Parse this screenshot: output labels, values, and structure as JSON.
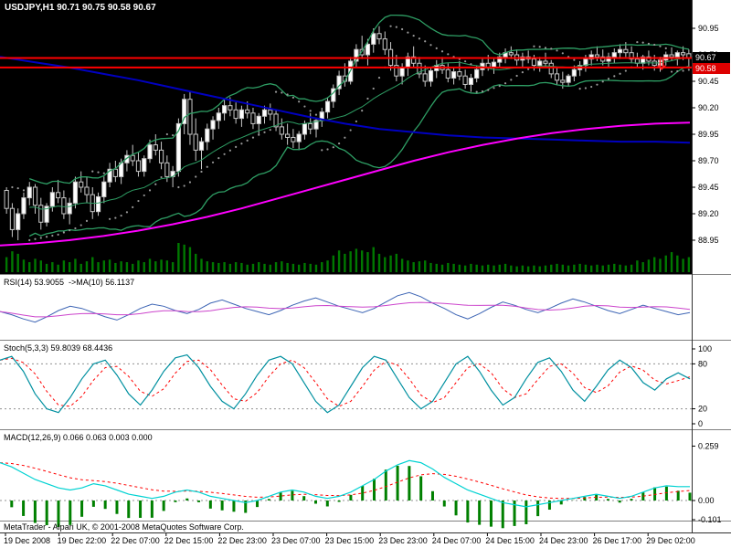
{
  "colors": {
    "background": "#000000",
    "pane_bg": "#ffffff",
    "divider": "#808080",
    "axis_text": "#000000",
    "bull": "#ffffff",
    "bear": "#000000",
    "outline": "#c8c8c8",
    "volume": "#007800",
    "hline": "#ff0000",
    "arrow": "#ff2020",
    "bands": "#2e9e64",
    "ma_slow": "#0000c0",
    "ma_trend": "#ff00ff",
    "psar": "#989898"
  },
  "price_tags": [
    {
      "label": "90.67",
      "bg": "#000000"
    },
    {
      "label": "90.58",
      "bg": "#dd0000"
    }
  ],
  "status_bar": "MetaTrader - Alpari UK, © 2001-2008 MetaQuotes Software Corp.",
  "time_axis": {
    "labels": [
      "19 Dec 2008",
      "19 Dec 22:00",
      "22 Dec 07:00",
      "22 Dec 15:00",
      "22 Dec 23:00",
      "23 Dec 07:00",
      "23 Dec 15:00",
      "23 Dec 23:00",
      "24 Dec 07:00",
      "24 Dec 15:00",
      "24 Dec 23:00",
      "26 Dec 17:00",
      "29 Dec 02:00"
    ]
  },
  "chart_data": [
    {
      "pane": "main",
      "type": "candlestick",
      "title": "USDJPY,H1 90.71 90.75 90.58 90.67",
      "symbol": "USDJPY",
      "timeframe": "H1",
      "ohlc_current": {
        "open": 90.71,
        "high": 90.75,
        "low": 90.58,
        "close": 90.67
      },
      "ylim": [
        88.62,
        91.1
      ],
      "yticks": [
        "90.95",
        "90.70",
        "90.45",
        "90.20",
        "89.95",
        "89.70",
        "89.45",
        "89.20",
        "88.95"
      ],
      "hlines": [
        90.67,
        90.58
      ],
      "arrow": {
        "price": 90.63,
        "bar": 114
      },
      "ohlc": [
        [
          89.42,
          89.45,
          89.2,
          89.25
        ],
        [
          89.25,
          89.3,
          88.98,
          89.05
        ],
        [
          89.05,
          89.25,
          88.95,
          89.2
        ],
        [
          89.2,
          89.4,
          89.15,
          89.35
        ],
        [
          89.35,
          89.5,
          89.28,
          89.45
        ],
        [
          89.45,
          89.48,
          89.2,
          89.28
        ],
        [
          89.28,
          89.35,
          89.05,
          89.12
        ],
        [
          89.12,
          89.3,
          89.08,
          89.27
        ],
        [
          89.27,
          89.45,
          89.22,
          89.4
        ],
        [
          89.4,
          89.52,
          89.3,
          89.35
        ],
        [
          89.35,
          89.42,
          89.15,
          89.2
        ],
        [
          89.2,
          89.35,
          89.1,
          89.3
        ],
        [
          89.3,
          89.55,
          89.25,
          89.5
        ],
        [
          89.5,
          89.6,
          89.4,
          89.45
        ],
        [
          89.45,
          89.55,
          89.3,
          89.38
        ],
        [
          89.38,
          89.45,
          89.15,
          89.22
        ],
        [
          89.22,
          89.4,
          89.18,
          89.36
        ],
        [
          89.36,
          89.55,
          89.3,
          89.5
        ],
        [
          89.5,
          89.68,
          89.45,
          89.62
        ],
        [
          89.62,
          89.7,
          89.5,
          89.55
        ],
        [
          89.55,
          89.72,
          89.48,
          89.68
        ],
        [
          89.68,
          89.8,
          89.6,
          89.75
        ],
        [
          89.75,
          89.85,
          89.65,
          89.7
        ],
        [
          89.7,
          89.78,
          89.55,
          89.6
        ],
        [
          89.6,
          89.75,
          89.55,
          89.72
        ],
        [
          89.72,
          89.9,
          89.68,
          89.85
        ],
        [
          89.85,
          89.95,
          89.75,
          89.8
        ],
        [
          89.8,
          89.88,
          89.62,
          89.68
        ],
        [
          89.68,
          89.75,
          89.5,
          89.55
        ],
        [
          89.55,
          89.65,
          89.45,
          89.6
        ],
        [
          89.6,
          90.1,
          89.55,
          90.05
        ],
        [
          90.05,
          90.33,
          89.95,
          90.28
        ],
        [
          90.28,
          90.35,
          89.85,
          89.95
        ],
        [
          89.95,
          90.1,
          89.7,
          89.8
        ],
        [
          89.8,
          89.92,
          89.62,
          89.88
        ],
        [
          89.88,
          90.05,
          89.8,
          90.0
        ],
        [
          90.0,
          90.12,
          89.9,
          90.08
        ],
        [
          90.08,
          90.2,
          90.0,
          90.15
        ],
        [
          90.15,
          90.28,
          90.08,
          90.22
        ],
        [
          90.22,
          90.3,
          90.12,
          90.18
        ],
        [
          90.18,
          90.25,
          90.05,
          90.1
        ],
        [
          90.1,
          90.22,
          90.02,
          90.18
        ],
        [
          90.18,
          90.26,
          90.1,
          90.15
        ],
        [
          90.15,
          90.2,
          90.0,
          90.05
        ],
        [
          90.05,
          90.15,
          89.95,
          90.12
        ],
        [
          90.12,
          90.22,
          90.05,
          90.18
        ],
        [
          90.18,
          90.24,
          90.08,
          90.14
        ],
        [
          90.14,
          90.18,
          89.98,
          90.02
        ],
        [
          90.02,
          90.1,
          89.9,
          89.95
        ],
        [
          89.95,
          90.05,
          89.85,
          89.92
        ],
        [
          89.92,
          90.0,
          89.82,
          89.88
        ],
        [
          89.88,
          89.98,
          89.8,
          89.95
        ],
        [
          89.95,
          90.08,
          89.9,
          90.05
        ],
        [
          90.05,
          90.15,
          89.95,
          90.0
        ],
        [
          90.0,
          90.1,
          89.92,
          90.08
        ],
        [
          90.08,
          90.2,
          90.02,
          90.16
        ],
        [
          90.16,
          90.3,
          90.1,
          90.26
        ],
        [
          90.26,
          90.42,
          90.2,
          90.38
        ],
        [
          90.38,
          90.55,
          90.32,
          90.5
        ],
        [
          90.5,
          90.62,
          90.4,
          90.45
        ],
        [
          90.45,
          90.68,
          90.42,
          90.64
        ],
        [
          90.64,
          90.8,
          90.58,
          90.75
        ],
        [
          90.75,
          90.88,
          90.66,
          90.7
        ],
        [
          90.7,
          90.85,
          90.6,
          90.8
        ],
        [
          90.8,
          90.95,
          90.72,
          90.9
        ],
        [
          90.9,
          90.97,
          90.8,
          90.85
        ],
        [
          90.85,
          90.92,
          90.7,
          90.75
        ],
        [
          90.75,
          90.82,
          90.55,
          90.6
        ],
        [
          90.6,
          90.7,
          90.45,
          90.5
        ],
        [
          90.5,
          90.62,
          90.42,
          90.58
        ],
        [
          90.58,
          90.72,
          90.5,
          90.68
        ],
        [
          90.68,
          90.78,
          90.58,
          90.62
        ],
        [
          90.62,
          90.68,
          90.48,
          90.52
        ],
        [
          90.52,
          90.6,
          90.4,
          90.45
        ],
        [
          90.45,
          90.58,
          90.4,
          90.55
        ],
        [
          90.55,
          90.65,
          90.48,
          90.6
        ],
        [
          90.6,
          90.68,
          90.52,
          90.56
        ],
        [
          90.56,
          90.62,
          90.44,
          90.48
        ],
        [
          90.48,
          90.58,
          90.42,
          90.54
        ],
        [
          90.54,
          90.64,
          90.46,
          90.5
        ],
        [
          90.5,
          90.56,
          90.38,
          90.42
        ],
        [
          90.42,
          90.52,
          90.35,
          90.48
        ],
        [
          90.48,
          90.6,
          90.44,
          90.56
        ],
        [
          90.56,
          90.66,
          90.5,
          90.62
        ],
        [
          90.62,
          90.7,
          90.55,
          90.58
        ],
        [
          90.58,
          90.66,
          90.52,
          90.63
        ],
        [
          90.63,
          90.72,
          90.58,
          90.68
        ],
        [
          90.68,
          90.76,
          90.62,
          90.72
        ],
        [
          90.72,
          90.78,
          90.66,
          90.7
        ],
        [
          90.7,
          90.75,
          90.6,
          90.65
        ],
        [
          90.65,
          90.72,
          90.58,
          90.68
        ],
        [
          90.68,
          90.74,
          90.62,
          90.66
        ],
        [
          90.66,
          90.7,
          90.55,
          90.6
        ],
        [
          90.6,
          90.68,
          90.54,
          90.64
        ],
        [
          90.64,
          90.72,
          90.58,
          90.62
        ],
        [
          90.62,
          90.65,
          90.48,
          90.52
        ],
        [
          90.52,
          90.58,
          90.42,
          90.46
        ],
        [
          90.46,
          90.54,
          90.38,
          90.44
        ],
        [
          90.44,
          90.52,
          90.4,
          90.5
        ],
        [
          90.5,
          90.6,
          90.45,
          90.56
        ],
        [
          90.56,
          90.64,
          90.5,
          90.6
        ],
        [
          90.6,
          90.7,
          90.54,
          90.66
        ],
        [
          90.66,
          90.74,
          90.6,
          90.7
        ],
        [
          90.7,
          90.78,
          90.64,
          90.68
        ],
        [
          90.68,
          90.75,
          90.6,
          90.64
        ],
        [
          90.64,
          90.72,
          90.58,
          90.68
        ],
        [
          90.68,
          90.76,
          90.62,
          90.72
        ],
        [
          90.72,
          90.8,
          90.66,
          90.75
        ],
        [
          90.75,
          90.82,
          90.68,
          90.72
        ],
        [
          90.72,
          90.78,
          90.62,
          90.66
        ],
        [
          90.66,
          90.72,
          90.58,
          90.62
        ],
        [
          90.62,
          90.7,
          90.56,
          90.68
        ],
        [
          90.68,
          90.74,
          90.6,
          90.64
        ],
        [
          90.64,
          90.7,
          90.55,
          90.6
        ],
        [
          90.6,
          90.68,
          90.54,
          90.65
        ],
        [
          90.65,
          90.73,
          90.6,
          90.7
        ],
        [
          90.7,
          90.77,
          90.64,
          90.68
        ],
        [
          90.68,
          90.74,
          90.6,
          90.72
        ],
        [
          90.72,
          90.78,
          90.65,
          90.7
        ],
        [
          90.71,
          90.75,
          90.58,
          90.67
        ]
      ],
      "volumes": [
        18,
        25,
        22,
        15,
        12,
        16,
        14,
        10,
        12,
        9,
        14,
        12,
        16,
        10,
        13,
        18,
        12,
        14,
        15,
        11,
        13,
        12,
        10,
        14,
        12,
        16,
        13,
        15,
        14,
        12,
        35,
        33,
        30,
        22,
        16,
        13,
        12,
        11,
        12,
        10,
        12,
        11,
        9,
        10,
        12,
        10,
        9,
        12,
        13,
        11,
        10,
        9,
        11,
        10,
        9,
        12,
        14,
        20,
        26,
        22,
        25,
        28,
        26,
        24,
        30,
        22,
        18,
        20,
        22,
        16,
        14,
        12,
        13,
        14,
        11,
        10,
        9,
        11,
        10,
        9,
        8,
        10,
        9,
        8,
        9,
        8,
        9,
        10,
        8,
        7,
        8,
        7,
        8,
        7,
        8,
        9,
        10,
        9,
        8,
        9,
        10,
        9,
        8,
        9,
        8,
        9,
        10,
        9,
        8,
        9,
        14,
        12,
        15,
        18,
        16,
        20,
        24,
        20,
        16,
        18
      ],
      "overlays": {
        "bollinger": {
          "period": 20,
          "deviation": 2
        },
        "psar": {
          "step": 0.02,
          "max": 0.2
        },
        "ma_slow_samples": [
          90.68,
          90.63,
          90.58,
          90.52,
          90.46,
          90.39,
          90.32,
          90.25,
          90.18,
          90.11,
          90.05,
          90.0,
          89.97,
          89.94,
          89.92,
          89.91,
          89.9,
          89.89,
          89.88,
          89.88,
          89.87
        ],
        "ma_trend_samples": [
          88.9,
          88.92,
          88.95,
          88.99,
          89.04,
          89.1,
          89.17,
          89.25,
          89.34,
          89.43,
          89.52,
          89.61,
          89.7,
          89.78,
          89.85,
          89.91,
          89.96,
          90.0,
          90.03,
          90.05,
          90.06
        ]
      }
    },
    {
      "pane": "rsi",
      "type": "line",
      "label": "RSI(14) 53.9055  ->MA(10) 56.1137",
      "value": 53.9055,
      "ma_value": 56.1137,
      "ma_period": 10,
      "colors": {
        "main": "#3c64b4",
        "ma": "#cc44cc"
      },
      "values": [
        55,
        52,
        48,
        45,
        50,
        56,
        60,
        58,
        54,
        50,
        47,
        52,
        58,
        62,
        60,
        56,
        53,
        57,
        63,
        66,
        62,
        58,
        55,
        52,
        56,
        61,
        65,
        68,
        64,
        60,
        57,
        54,
        58,
        64,
        70,
        73,
        69,
        63,
        58,
        52,
        48,
        53,
        59,
        64,
        61,
        57,
        54,
        58,
        63,
        67,
        64,
        60,
        56,
        53,
        57,
        61,
        58,
        55,
        52,
        54
      ]
    },
    {
      "pane": "stoch",
      "type": "line",
      "label": "Stoch(5,3,3) 59.8039 68.4436",
      "value": 59.8039,
      "signal_value": 68.4436,
      "signal_period": 3,
      "ylim": [
        0,
        100
      ],
      "levels": [
        20,
        80
      ],
      "yticks": [
        "100",
        "80",
        "20",
        "0"
      ],
      "colors": {
        "main": "#0090a0",
        "signal": "#ff0000"
      },
      "values": [
        85,
        90,
        70,
        40,
        20,
        15,
        35,
        60,
        80,
        85,
        65,
        40,
        25,
        45,
        70,
        88,
        92,
        75,
        50,
        30,
        20,
        40,
        65,
        85,
        90,
        80,
        55,
        30,
        15,
        25,
        50,
        75,
        90,
        85,
        60,
        35,
        20,
        30,
        55,
        80,
        90,
        70,
        45,
        25,
        35,
        60,
        82,
        88,
        70,
        45,
        30,
        50,
        72,
        85,
        75,
        55,
        45,
        60,
        68,
        60
      ]
    },
    {
      "pane": "macd",
      "type": "macd",
      "label": "MACD(12,26,9) 0.066 0.063 0.003 0.000",
      "values_shown": [
        0.066,
        0.063,
        0.003,
        0.0
      ],
      "signal_period": 9,
      "ylim": [
        -0.101,
        0.259
      ],
      "yticks": [
        "0.259",
        "0.00",
        "-0.101"
      ],
      "colors": {
        "main": "#00d2d2",
        "signal": "#ff0000",
        "histogram": "#008000"
      },
      "values": [
        0.18,
        0.16,
        0.13,
        0.1,
        0.08,
        0.06,
        0.05,
        0.06,
        0.08,
        0.07,
        0.05,
        0.03,
        0.02,
        0.01,
        0.02,
        0.04,
        0.05,
        0.04,
        0.02,
        0.01,
        0.0,
        -0.01,
        0.0,
        0.02,
        0.04,
        0.05,
        0.04,
        0.02,
        0.01,
        0.02,
        0.04,
        0.07,
        0.1,
        0.14,
        0.17,
        0.19,
        0.18,
        0.15,
        0.11,
        0.08,
        0.05,
        0.03,
        0.01,
        -0.01,
        -0.02,
        -0.03,
        -0.02,
        -0.01,
        0.0,
        0.01,
        0.02,
        0.03,
        0.02,
        0.01,
        0.02,
        0.04,
        0.06,
        0.07,
        0.066,
        0.066
      ]
    }
  ]
}
